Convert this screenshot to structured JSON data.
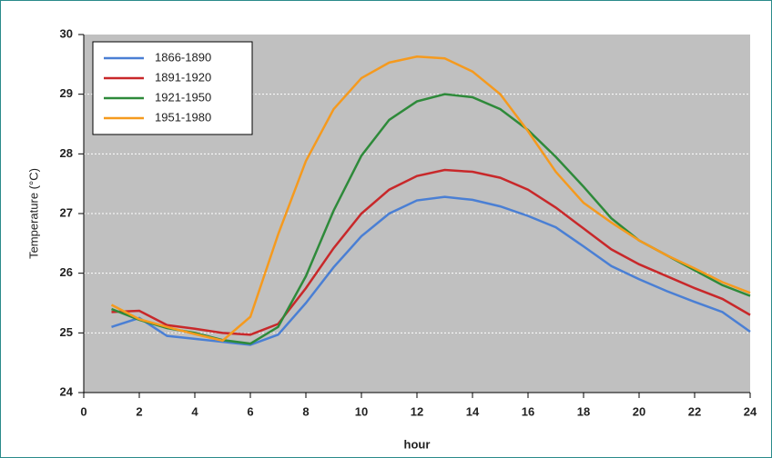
{
  "chart_data": {
    "type": "line",
    "xlabel": "hour",
    "ylabel": "Temperature (°C)",
    "x": [
      1,
      2,
      3,
      4,
      5,
      6,
      7,
      8,
      9,
      10,
      11,
      12,
      13,
      14,
      15,
      16,
      17,
      18,
      19,
      20,
      21,
      22,
      23,
      24
    ],
    "series": [
      {
        "name": "1866-1890",
        "color": "#4a7fd4",
        "values": [
          25.1,
          25.25,
          24.95,
          24.9,
          24.85,
          24.8,
          24.97,
          25.5,
          26.1,
          26.62,
          27.0,
          27.22,
          27.28,
          27.23,
          27.12,
          26.96,
          26.77,
          26.45,
          26.12,
          25.9,
          25.7,
          25.52,
          25.35,
          25.02
        ]
      },
      {
        "name": "1891-1920",
        "color": "#c8282a",
        "values": [
          25.35,
          25.37,
          25.13,
          25.07,
          25.0,
          24.97,
          25.15,
          25.75,
          26.42,
          27.0,
          27.4,
          27.63,
          27.73,
          27.7,
          27.6,
          27.4,
          27.1,
          26.75,
          26.4,
          26.15,
          25.95,
          25.75,
          25.57,
          25.3
        ]
      },
      {
        "name": "1921-1950",
        "color": "#2e8a3a",
        "values": [
          25.4,
          25.22,
          25.08,
          25.0,
          24.88,
          24.82,
          25.1,
          25.95,
          27.05,
          27.97,
          28.57,
          28.88,
          29.0,
          28.95,
          28.75,
          28.4,
          27.95,
          27.45,
          26.92,
          26.55,
          26.3,
          26.05,
          25.8,
          25.62
        ]
      },
      {
        "name": "1951-1980",
        "color": "#f59a1e",
        "values": [
          25.47,
          25.23,
          25.1,
          24.98,
          24.87,
          25.27,
          26.65,
          27.88,
          28.75,
          29.27,
          29.53,
          29.63,
          29.6,
          29.38,
          29.0,
          28.38,
          27.7,
          27.18,
          26.85,
          26.55,
          26.3,
          26.08,
          25.85,
          25.67
        ]
      }
    ],
    "xlim": [
      0,
      24
    ],
    "xticks": [
      0,
      2,
      4,
      6,
      8,
      10,
      12,
      14,
      16,
      18,
      20,
      22,
      24
    ],
    "ylim": [
      24,
      30
    ],
    "yticks": [
      24,
      25,
      26,
      27,
      28,
      29,
      30
    ],
    "grid": true,
    "legend": "upper left"
  }
}
